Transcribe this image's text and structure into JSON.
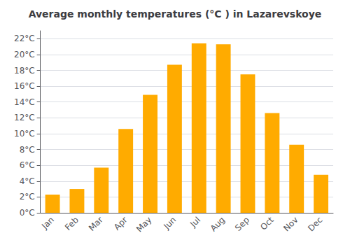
{
  "chart_data": {
    "type": "bar",
    "title": "Average monthly temperatures (°C ) in Lazarevskoye",
    "categories": [
      "Jan",
      "Feb",
      "Mar",
      "Apr",
      "May",
      "Jun",
      "Jul",
      "Aug",
      "Sep",
      "Oct",
      "Nov",
      "Dec"
    ],
    "values": [
      2.3,
      3.0,
      5.7,
      10.6,
      14.9,
      18.7,
      21.4,
      21.3,
      17.5,
      12.6,
      8.6,
      4.8
    ],
    "color": "#FFAB00",
    "ylim": [
      0,
      23
    ],
    "yticks": [
      {
        "value": 0,
        "label": "0°C"
      },
      {
        "value": 2,
        "label": "2°C"
      },
      {
        "value": 4,
        "label": "4°C"
      },
      {
        "value": 6,
        "label": "6°C"
      },
      {
        "value": 8,
        "label": "8°C"
      },
      {
        "value": 10,
        "label": "10°C"
      },
      {
        "value": 12,
        "label": "12°C"
      },
      {
        "value": 14,
        "label": "14°C"
      },
      {
        "value": 16,
        "label": "16°C"
      },
      {
        "value": 18,
        "label": "18°C"
      },
      {
        "value": 20,
        "label": "20°C"
      },
      {
        "value": 22,
        "label": "22°C"
      }
    ],
    "grid": true
  }
}
